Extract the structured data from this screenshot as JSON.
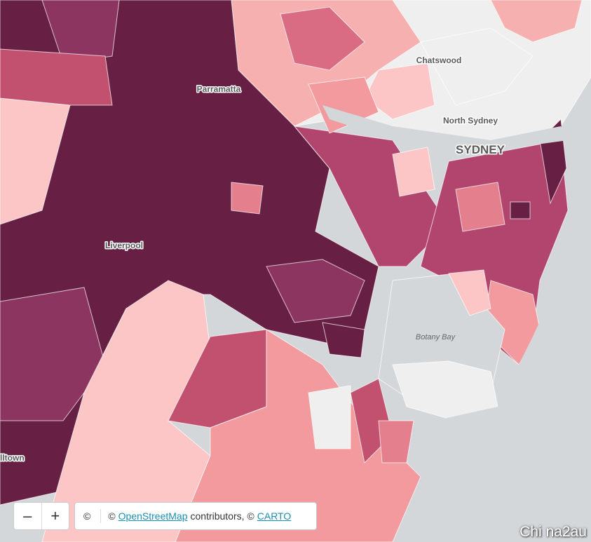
{
  "map": {
    "labels": {
      "chatswood": "Chatswood",
      "parramatta": "Parramatta",
      "north_sydney": "North Sydney",
      "sydney": "SYDNEY",
      "liverpool": "Liverpool",
      "botany_bay": "Botany Bay",
      "edge_label": "lltown"
    },
    "zoom": {
      "out": "–",
      "in": "+"
    },
    "attribution": {
      "icon": "©",
      "prefix": "©",
      "osm": "OpenStreetMap",
      "middle": "contributors, ©",
      "carto": "CARTO"
    },
    "watermark": "Chi na2au"
  }
}
